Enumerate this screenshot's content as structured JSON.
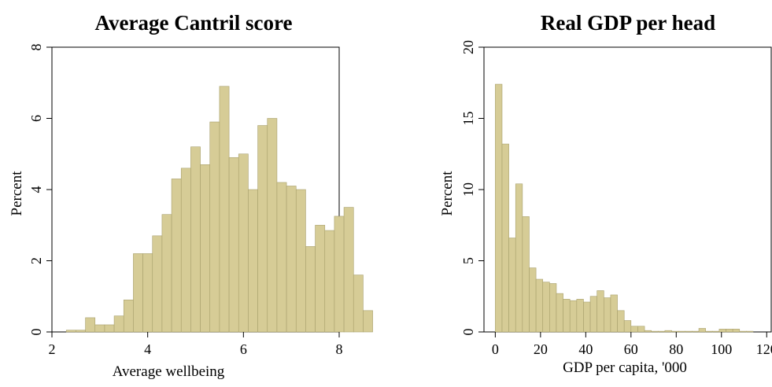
{
  "charts": [
    {
      "title": "Average Cantril score",
      "xlabel": "Average wellbeing",
      "ylabel": "Percent",
      "color": "#d6cc96",
      "edge": "#a8a06c",
      "chart_data": {
        "type": "bar",
        "title": "Average Cantril score",
        "xlabel": "Average wellbeing",
        "ylabel": "Percent",
        "xlim": [
          2,
          8
        ],
        "ylim": [
          0,
          8
        ],
        "xticks": [
          2,
          4,
          6,
          8
        ],
        "yticks": [
          0,
          2,
          4,
          6,
          8
        ],
        "bin_start": 2.3,
        "bin_width": 0.2,
        "values": [
          0.05,
          0.05,
          0.4,
          0.2,
          0.2,
          0.45,
          0.9,
          2.2,
          2.2,
          2.7,
          3.3,
          4.3,
          4.6,
          5.2,
          4.7,
          5.9,
          6.9,
          4.9,
          5.0,
          4.0,
          5.8,
          6.0,
          4.2,
          4.1,
          4.0,
          2.4,
          3.0,
          2.85,
          3.25,
          3.5,
          1.6,
          0.6
        ]
      }
    },
    {
      "title": "Real GDP per head",
      "xlabel": "GDP per capita, '000",
      "ylabel": "Percent",
      "color": "#d6cc96",
      "edge": "#a8a06c",
      "chart_data": {
        "type": "bar",
        "title": "Real GDP per head",
        "xlabel": "GDP per capita, '000",
        "ylabel": "Percent",
        "xlim": [
          -5,
          122
        ],
        "ylim": [
          0,
          20
        ],
        "xticks": [
          0,
          20,
          40,
          60,
          80,
          100,
          120
        ],
        "yticks": [
          0,
          5,
          10,
          15,
          20
        ],
        "bin_start": 0,
        "bin_width": 3,
        "values": [
          17.4,
          13.2,
          6.6,
          10.4,
          8.1,
          4.5,
          3.7,
          3.5,
          3.4,
          2.7,
          2.3,
          2.2,
          2.3,
          2.1,
          2.5,
          2.9,
          2.4,
          2.6,
          1.5,
          0.8,
          0.4,
          0.4,
          0.1,
          0.05,
          0.05,
          0.1,
          0.05,
          0.05,
          0.05,
          0.05,
          0.25,
          0.05,
          0.05,
          0.2,
          0.2,
          0.2,
          0.05,
          0.05
        ]
      }
    }
  ]
}
